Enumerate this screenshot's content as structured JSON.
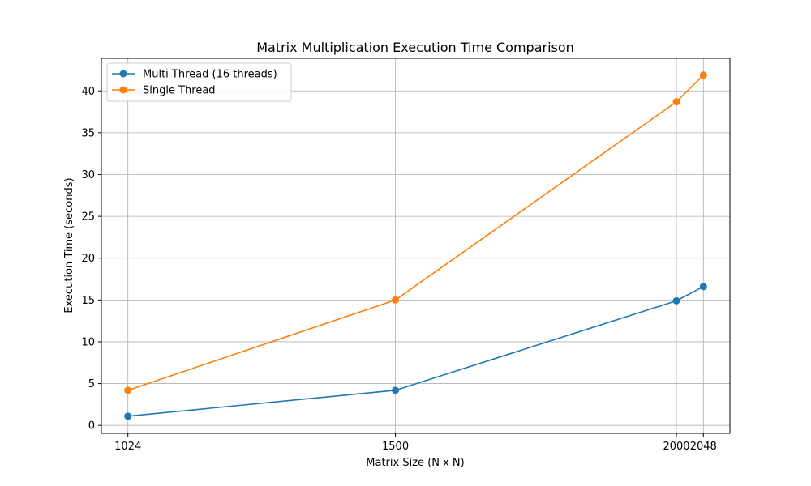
{
  "chart_data": {
    "type": "line",
    "title": "Matrix Multiplication Execution Time Comparison",
    "xlabel": "Matrix Size (N x N)",
    "ylabel": "Execution Time (seconds)",
    "x": [
      1024,
      1500,
      2000,
      2048
    ],
    "x_tick_labels": [
      "1024",
      "1500",
      "2000",
      "2048"
    ],
    "xlim": [
      976.8,
      2095.2
    ],
    "ylim": [
      -0.95,
      43.9
    ],
    "y_ticks": [
      0,
      5,
      10,
      15,
      20,
      25,
      30,
      35,
      40
    ],
    "y_tick_labels": [
      "0",
      "5",
      "10",
      "15",
      "20",
      "25",
      "30",
      "35",
      "40"
    ],
    "grid": true,
    "legend_position": "upper-left",
    "series": [
      {
        "name": "Multi Thread (16 threads)",
        "values": [
          1.1,
          4.2,
          14.9,
          16.6
        ],
        "color": "#1f77b4"
      },
      {
        "name": "Single Thread",
        "values": [
          4.2,
          15.0,
          38.7,
          41.9
        ],
        "color": "#ff7f0e"
      }
    ]
  }
}
